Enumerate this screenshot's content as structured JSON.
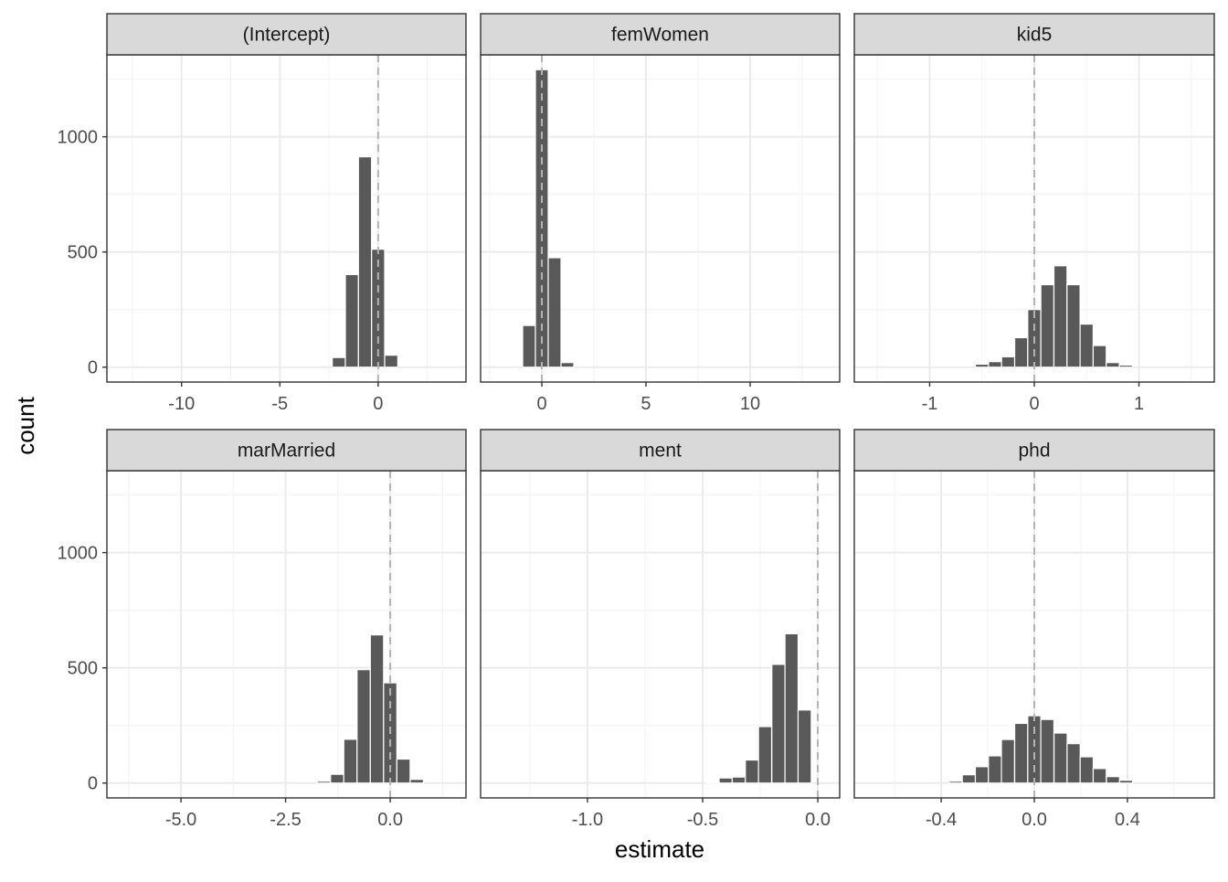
{
  "chart_data": {
    "type": "bar",
    "subtype": "faceted histogram",
    "xlabel": "estimate",
    "ylabel": "count",
    "ylim": [
      -64.5,
      1355.5
    ],
    "yticks": [
      0,
      500,
      1000
    ],
    "grid": true,
    "reference_line": {
      "x": 0,
      "style": "dashed",
      "color": "#b3b3b3"
    },
    "bar_color": "#595959",
    "strip_color": "#d9d9d9",
    "facets": [
      {
        "title": "(Intercept)",
        "xlim": [
          -13.8,
          4.47
        ],
        "xticks": [
          -10,
          -5,
          0
        ],
        "xtick_labels": [
          "-10",
          "-5",
          "0"
        ],
        "minor": [
          -12.5,
          -7.5,
          -2.5,
          2.5
        ],
        "binwidth": 0.667,
        "x": [
          -2.0,
          -1.333,
          -0.667,
          0.0,
          0.667
        ],
        "counts": [
          42,
          402,
          913,
          512,
          52
        ]
      },
      {
        "title": "femWomen",
        "xlim": [
          -2.94,
          14.3
        ],
        "xticks": [
          0,
          5,
          10
        ],
        "xtick_labels": [
          "0",
          "5",
          "10"
        ],
        "minor": [
          -2.5,
          2.5,
          7.5,
          12.5
        ],
        "binwidth": 0.614,
        "x": [
          -0.614,
          0.0,
          0.614,
          1.228
        ],
        "counts": [
          181,
          1291,
          475,
          20
        ]
      },
      {
        "title": "kid5",
        "xlim": [
          -1.72,
          1.72
        ],
        "xticks": [
          -1,
          0,
          1
        ],
        "xtick_labels": [
          "-1",
          "0",
          "1"
        ],
        "minor": [
          -1.5,
          -0.5,
          0.5,
          1.5
        ],
        "binwidth": 0.125,
        "x": [
          -0.5,
          -0.375,
          -0.25,
          -0.125,
          0,
          0.125,
          0.25,
          0.375,
          0.5,
          0.625,
          0.75,
          0.875
        ],
        "counts": [
          13,
          24,
          45,
          128,
          250,
          358,
          440,
          358,
          187,
          94,
          20,
          9
        ]
      },
      {
        "title": "marMarried",
        "xlim": [
          -6.77,
          1.81
        ],
        "xticks": [
          -5,
          -2.5,
          0
        ],
        "xtick_labels": [
          "-5.0",
          "-2.5",
          "0.0"
        ],
        "minor": [
          -6.25,
          -3.75,
          -1.25,
          1.25
        ],
        "binwidth": 0.317,
        "x": [
          -1.585,
          -1.268,
          -0.951,
          -0.634,
          -0.317,
          0,
          0.317,
          0.634
        ],
        "counts": [
          8,
          38,
          190,
          492,
          643,
          435,
          104,
          16
        ]
      },
      {
        "title": "ment",
        "xlim": [
          -1.464,
          0.095
        ],
        "xticks": [
          -1,
          -0.5,
          0
        ],
        "xtick_labels": [
          "-1.0",
          "-0.5",
          "0.0"
        ],
        "minor": [
          -1.25,
          -0.75,
          -0.25
        ],
        "binwidth": 0.0571,
        "x": [
          -0.457,
          -0.4,
          -0.343,
          -0.286,
          -0.229,
          -0.171,
          -0.114,
          -0.057
        ],
        "counts": [
          4,
          22,
          26,
          100,
          245,
          515,
          648,
          317
        ]
      },
      {
        "title": "phd",
        "xlim": [
          -0.773,
          0.773
        ],
        "xticks": [
          -0.4,
          0,
          0.4
        ],
        "xtick_labels": [
          "-0.4",
          "0.0",
          "0.4"
        ],
        "minor": [
          -0.6,
          -0.2,
          0.2,
          0.6
        ],
        "binwidth": 0.0563,
        "x": [
          -0.338,
          -0.281,
          -0.225,
          -0.169,
          -0.113,
          -0.056,
          0,
          0.056,
          0.113,
          0.169,
          0.225,
          0.281,
          0.338,
          0.394
        ],
        "counts": [
          8,
          36,
          71,
          118,
          189,
          259,
          292,
          276,
          217,
          171,
          114,
          63,
          28,
          12
        ]
      }
    ]
  }
}
